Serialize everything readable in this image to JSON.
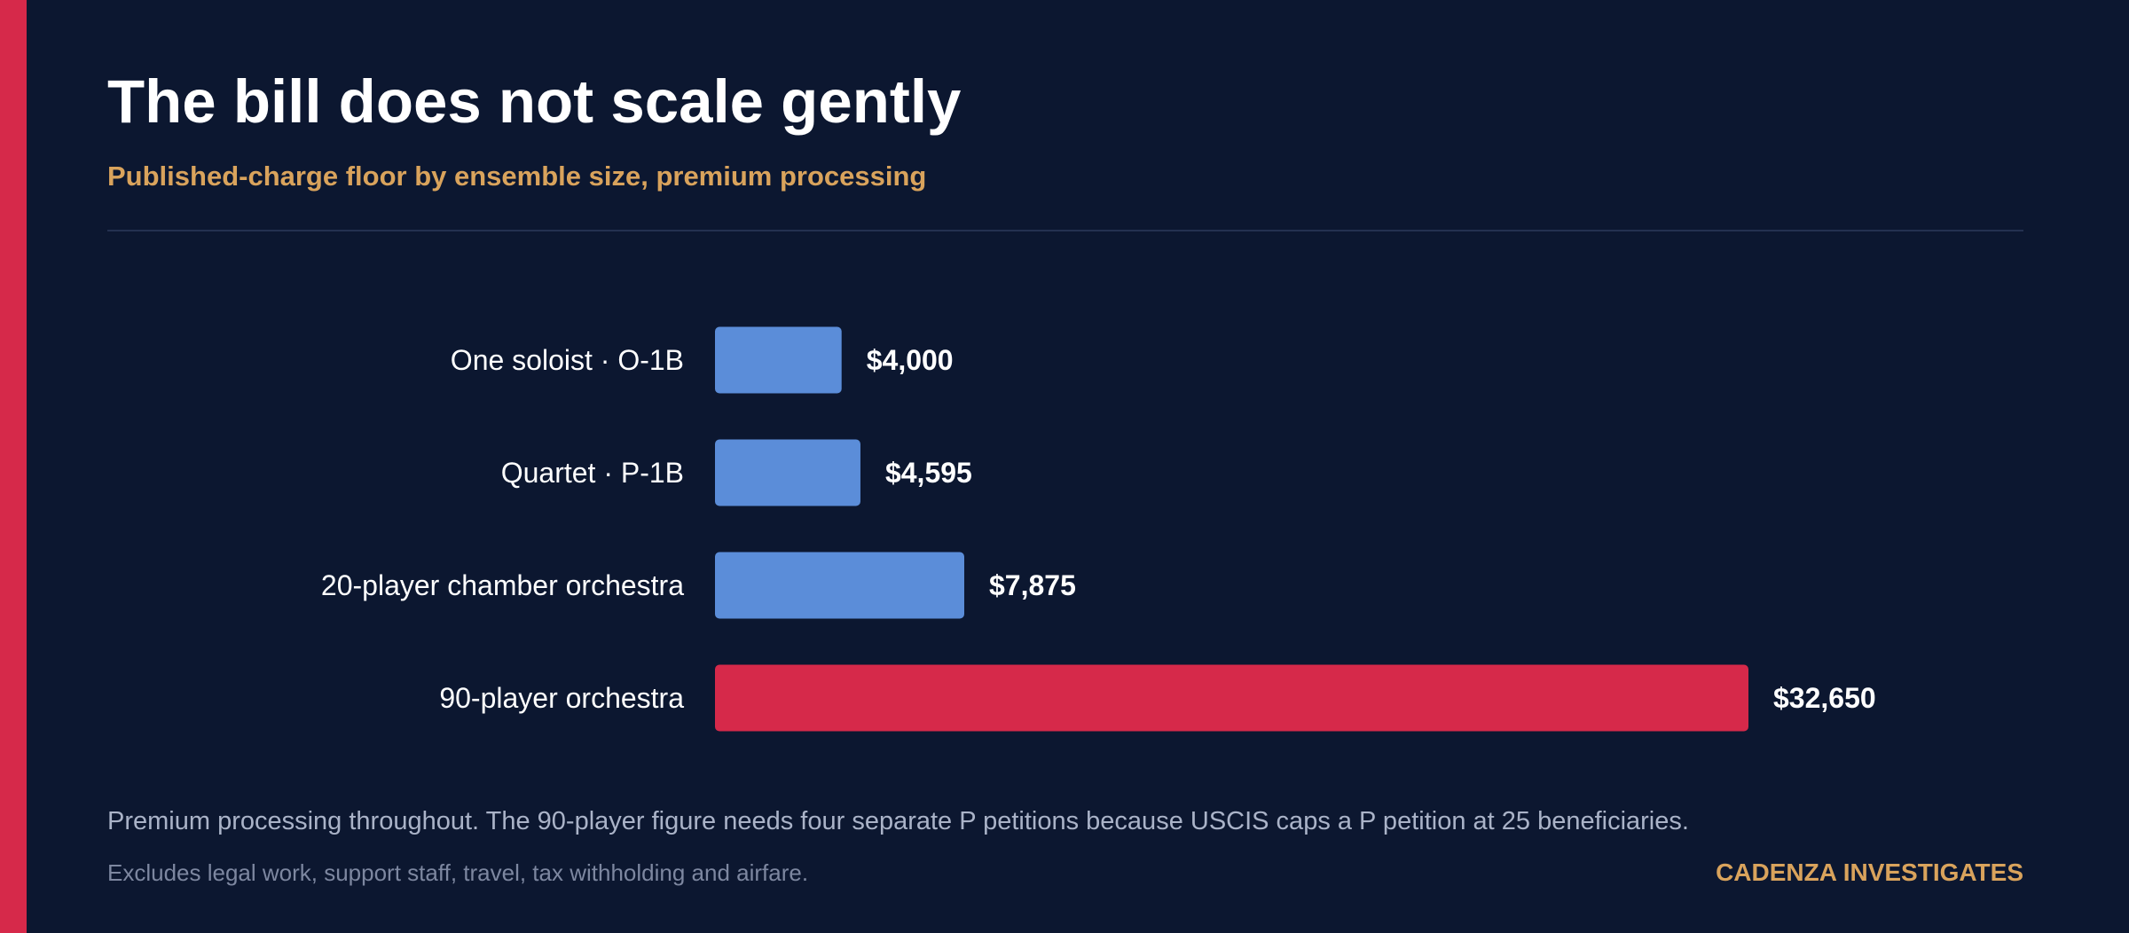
{
  "title": "The bill does not scale gently",
  "subtitle": "Published-charge floor by ensemble size, premium processing",
  "note": "Premium processing throughout. The 90-player figure needs four separate P petitions because USCIS caps a P petition at 25 beneficiaries.",
  "footnote": "Excludes legal work, support staff, travel, tax withholding and airfare.",
  "brand": "CADENZA INVESTIGATES",
  "colors": {
    "background": "#0c1730",
    "accent": "#d6294a",
    "bar_default": "#5b8dd9",
    "bar_highlight": "#d6294a",
    "subtitle": "#d9a35c"
  },
  "chart_data": {
    "type": "bar",
    "orientation": "horizontal",
    "title": "The bill does not scale gently",
    "subtitle": "Published-charge floor by ensemble size, premium processing",
    "categories": [
      "One soloist · O-1B",
      "Quartet · P-1B",
      "20-player chamber orchestra",
      "90-player orchestra"
    ],
    "values": [
      4000,
      4595,
      7875,
      32650
    ],
    "value_labels": [
      "$4,000",
      "$4,595",
      "$7,875",
      "$32,650"
    ],
    "highlight": [
      false,
      false,
      false,
      true
    ],
    "xlabel": "",
    "ylabel": "",
    "xlim": [
      0,
      32650
    ],
    "grid": false,
    "legend": "none"
  }
}
